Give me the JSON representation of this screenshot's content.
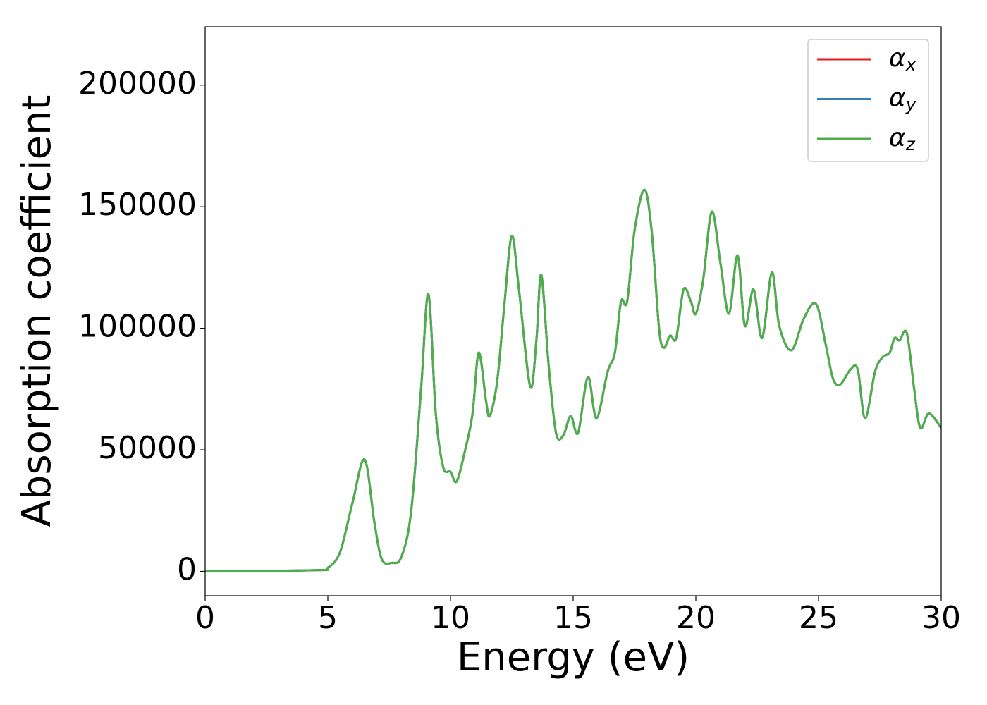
{
  "chart_data": {
    "type": "line",
    "xlabel": "Energy (eV)",
    "ylabel": "Absorption coefficient",
    "x": [
      0,
      4.5,
      5.0,
      5.5,
      6.0,
      6.5,
      6.9,
      7.2,
      7.6,
      8.0,
      8.4,
      8.8,
      9.1,
      9.4,
      9.7,
      10.0,
      10.25,
      10.6,
      10.9,
      11.15,
      11.45,
      11.6,
      11.9,
      12.2,
      12.5,
      12.8,
      13.25,
      13.5,
      13.7,
      14.0,
      14.3,
      14.6,
      14.9,
      15.2,
      15.6,
      15.95,
      16.4,
      16.7,
      16.95,
      17.2,
      17.5,
      17.9,
      18.2,
      18.5,
      18.7,
      18.95,
      19.2,
      19.5,
      19.8,
      20.0,
      20.3,
      20.65,
      21.0,
      21.35,
      21.7,
      22.0,
      22.35,
      22.7,
      23.1,
      23.4,
      23.9,
      24.4,
      24.9,
      25.3,
      25.6,
      25.9,
      26.3,
      26.6,
      26.9,
      27.3,
      27.6,
      27.9,
      28.1,
      28.3,
      28.6,
      28.9,
      29.15,
      29.5,
      30
    ],
    "series": [
      {
        "name": "αx",
        "color": "#e41a1c",
        "values": [
          0,
          500,
          1500,
          8000,
          28000,
          46000,
          20000,
          5000,
          3500,
          6000,
          25000,
          75000,
          114000,
          65000,
          43000,
          41000,
          37000,
          50000,
          65000,
          90000,
          70000,
          64000,
          78000,
          110000,
          138000,
          115000,
          76000,
          95000,
          122000,
          85000,
          57000,
          56000,
          64000,
          57000,
          80000,
          63000,
          82000,
          90000,
          111000,
          111000,
          140000,
          157000,
          140000,
          100000,
          92000,
          97000,
          96000,
          116000,
          111000,
          106000,
          120000,
          148000,
          127000,
          106000,
          130000,
          101000,
          116000,
          96000,
          123000,
          101000,
          91000,
          104000,
          110000,
          93000,
          79000,
          77000,
          83000,
          83000,
          63000,
          82000,
          88000,
          90000,
          96000,
          95000,
          98000,
          75000,
          59000,
          65000,
          59000
        ]
      },
      {
        "name": "αy",
        "color": "#377eb8",
        "values": [
          0,
          500,
          1500,
          8000,
          28000,
          46000,
          20000,
          5000,
          3500,
          6000,
          25000,
          75000,
          114000,
          65000,
          43000,
          41000,
          37000,
          50000,
          65000,
          90000,
          70000,
          64000,
          78000,
          110000,
          138000,
          115000,
          76000,
          95000,
          122000,
          85000,
          57000,
          56000,
          64000,
          57000,
          80000,
          63000,
          82000,
          90000,
          111000,
          111000,
          140000,
          157000,
          140000,
          100000,
          92000,
          97000,
          96000,
          116000,
          111000,
          106000,
          120000,
          148000,
          127000,
          106000,
          130000,
          101000,
          116000,
          96000,
          123000,
          101000,
          91000,
          104000,
          110000,
          93000,
          79000,
          77000,
          83000,
          83000,
          63000,
          82000,
          88000,
          90000,
          96000,
          95000,
          98000,
          75000,
          59000,
          65000,
          59000
        ]
      },
      {
        "name": "αz",
        "color": "#4daf4a",
        "values": [
          0,
          500,
          1500,
          8000,
          28000,
          46000,
          20000,
          5000,
          3500,
          6000,
          25000,
          75000,
          114000,
          65000,
          43000,
          41000,
          37000,
          50000,
          65000,
          90000,
          70000,
          64000,
          78000,
          110000,
          138000,
          115000,
          76000,
          95000,
          122000,
          85000,
          57000,
          56000,
          64000,
          57000,
          80000,
          63000,
          82000,
          90000,
          111000,
          111000,
          140000,
          157000,
          140000,
          100000,
          92000,
          97000,
          96000,
          116000,
          111000,
          106000,
          120000,
          148000,
          127000,
          106000,
          130000,
          101000,
          116000,
          96000,
          123000,
          101000,
          91000,
          104000,
          110000,
          93000,
          79000,
          77000,
          83000,
          83000,
          63000,
          82000,
          88000,
          90000,
          96000,
          95000,
          98000,
          75000,
          59000,
          65000,
          59000
        ]
      }
    ],
    "xlim": [
      0,
      30
    ],
    "xticks": [
      0,
      5,
      10,
      15,
      20,
      25,
      30
    ],
    "ylim": [
      -10000,
      224000
    ],
    "yticks": [
      0,
      50000,
      100000,
      150000,
      200000
    ],
    "legend": "upper right",
    "grid": false
  }
}
